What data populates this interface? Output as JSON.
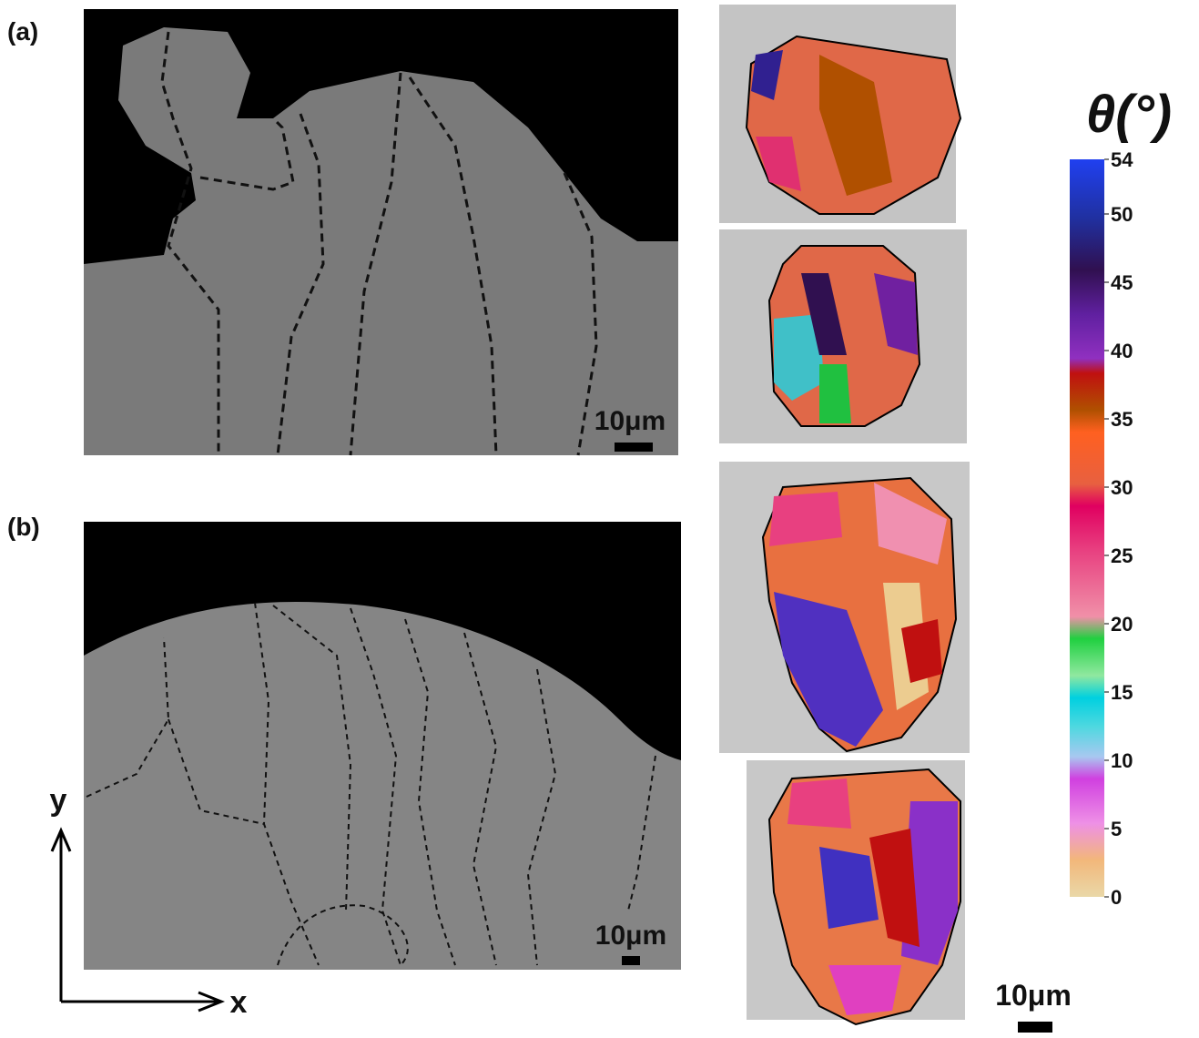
{
  "panels": [
    {
      "label": "(a)",
      "scale_bar": "10μm"
    },
    {
      "label": "(b)",
      "scale_bar": "10μm"
    }
  ],
  "axes": {
    "x": "x",
    "y": "y"
  },
  "grain_maps": {
    "scale_bar": "10μm"
  },
  "colorbar": {
    "label": "θ(°)",
    "lim": [
      0,
      54
    ],
    "ticks": [
      0,
      5,
      10,
      15,
      20,
      25,
      30,
      35,
      40,
      45,
      50,
      54
    ]
  }
}
